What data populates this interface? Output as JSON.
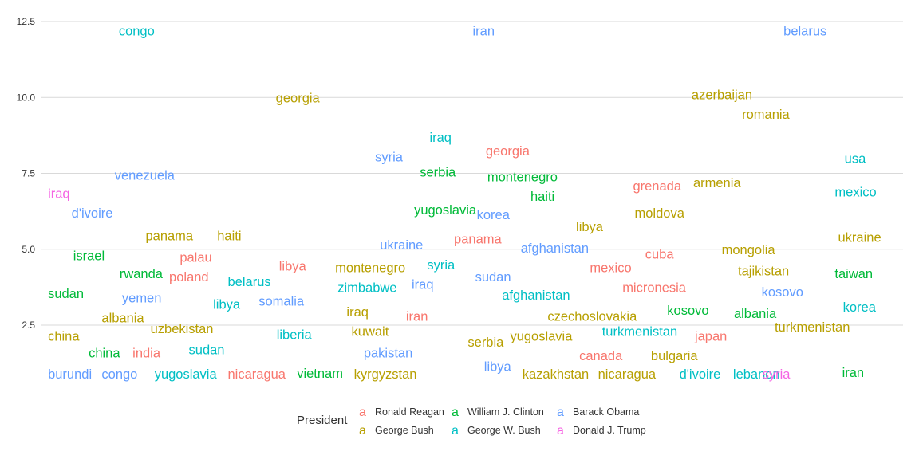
{
  "chart_data": {
    "type": "scatter",
    "title": "",
    "xlabel": "",
    "ylabel": "",
    "ylim": [
      0.4,
      13.0
    ],
    "y_ticks": [
      2.5,
      5.0,
      7.5,
      10.0,
      12.5
    ],
    "y_tick_labels": [
      "2.5",
      "5.0",
      "7.5",
      "10.0",
      "12.5"
    ],
    "x_axis_shown": false,
    "grid": "horizontal",
    "legend": {
      "title": "President",
      "placement": "bottom",
      "key_glyph": "a",
      "entries": [
        {
          "name": "Ronald Reagan",
          "color": "#F8766D"
        },
        {
          "name": "George Bush",
          "color": "#B79F00"
        },
        {
          "name": "William J. Clinton",
          "color": "#00BA38"
        },
        {
          "name": "George W. Bush",
          "color": "#00BFC4"
        },
        {
          "name": "Barack Obama",
          "color": "#619CFF"
        },
        {
          "name": "Donald J. Trump",
          "color": "#F564E3"
        }
      ]
    },
    "points": [
      {
        "label": "congo",
        "president": "George W. Bush",
        "x": 0.091,
        "y": 12.2
      },
      {
        "label": "iran",
        "president": "Barack Obama",
        "x": 0.526,
        "y": 12.2
      },
      {
        "label": "belarus",
        "president": "Barack Obama",
        "x": 0.908,
        "y": 12.2
      },
      {
        "label": "georgia",
        "president": "George Bush",
        "x": 0.284,
        "y": 10.0
      },
      {
        "label": "azerbaijan",
        "president": "George Bush",
        "x": 0.795,
        "y": 10.1
      },
      {
        "label": "romania",
        "president": "George Bush",
        "x": 0.857,
        "y": 9.45
      },
      {
        "label": "iraq",
        "president": "George W. Bush",
        "x": 0.473,
        "y": 8.7
      },
      {
        "label": "syria",
        "president": "Barack Obama",
        "x": 0.406,
        "y": 8.05
      },
      {
        "label": "georgia",
        "president": "Ronald Reagan",
        "x": 0.542,
        "y": 8.25
      },
      {
        "label": "usa",
        "president": "George W. Bush",
        "x": 0.983,
        "y": 8.0
      },
      {
        "label": "venezuela",
        "president": "Barack Obama",
        "x": 0.086,
        "y": 7.45
      },
      {
        "label": "serbia",
        "president": "William J. Clinton",
        "x": 0.461,
        "y": 7.55
      },
      {
        "label": "montenegro",
        "president": "William J. Clinton",
        "x": 0.544,
        "y": 7.4
      },
      {
        "label": "grenada",
        "president": "Ronald Reagan",
        "x": 0.723,
        "y": 7.1
      },
      {
        "label": "armenia",
        "president": "George Bush",
        "x": 0.797,
        "y": 7.2
      },
      {
        "label": "iraq",
        "president": "Donald J. Trump",
        "x": 0.004,
        "y": 6.85
      },
      {
        "label": "mexico",
        "president": "George W. Bush",
        "x": 0.971,
        "y": 6.9
      },
      {
        "label": "haiti",
        "president": "William J. Clinton",
        "x": 0.597,
        "y": 6.75
      },
      {
        "label": "d'ivoire",
        "president": "Barack Obama",
        "x": 0.033,
        "y": 6.2
      },
      {
        "label": "yugoslavia",
        "president": "William J. Clinton",
        "x": 0.454,
        "y": 6.3
      },
      {
        "label": "korea",
        "president": "Barack Obama",
        "x": 0.531,
        "y": 6.15
      },
      {
        "label": "moldova",
        "president": "George Bush",
        "x": 0.725,
        "y": 6.2
      },
      {
        "label": "libya",
        "president": "George George Bush",
        "x": 0.653,
        "y": 5.75
      },
      {
        "label": "panama",
        "president": "George Bush",
        "x": 0.124,
        "y": 5.45
      },
      {
        "label": "haiti",
        "president": "George Bush",
        "x": 0.212,
        "y": 5.45
      },
      {
        "label": "panama",
        "president": "Ronald Reagan",
        "x": 0.503,
        "y": 5.35
      },
      {
        "label": "ukraine",
        "president": "George Bush",
        "x": 0.975,
        "y": 5.4
      },
      {
        "label": "ukraine",
        "president": "Barack Obama",
        "x": 0.412,
        "y": 5.15
      },
      {
        "label": "afghanistan",
        "president": "Barack Obama",
        "x": 0.585,
        "y": 5.05
      },
      {
        "label": "mongolia",
        "president": "George Bush",
        "x": 0.832,
        "y": 5.0
      },
      {
        "label": "israel",
        "president": "William J. Clinton",
        "x": 0.035,
        "y": 4.8
      },
      {
        "label": "palau",
        "president": "Ronald Reagan",
        "x": 0.166,
        "y": 4.75
      },
      {
        "label": "cuba",
        "president": "Ronald Reagan",
        "x": 0.738,
        "y": 4.85
      },
      {
        "label": "libya",
        "president": "Ronald Reagan",
        "x": 0.288,
        "y": 4.45
      },
      {
        "label": "montenegro",
        "president": "George Bush",
        "x": 0.357,
        "y": 4.4
      },
      {
        "label": "syria",
        "president": "George W. Bush",
        "x": 0.47,
        "y": 4.5
      },
      {
        "label": "mexico",
        "president": "Ronald Reagan",
        "x": 0.67,
        "y": 4.4
      },
      {
        "label": "tajikistan",
        "president": "George Bush",
        "x": 0.852,
        "y": 4.3
      },
      {
        "label": "taiwan",
        "president": "William J. Clinton",
        "x": 0.971,
        "y": 4.2
      },
      {
        "label": "rwanda",
        "president": "William J. Clinton",
        "x": 0.092,
        "y": 4.2
      },
      {
        "label": "poland",
        "president": "Ronald Reagan",
        "x": 0.153,
        "y": 4.1
      },
      {
        "label": "belarus",
        "president": "George W. Bush",
        "x": 0.225,
        "y": 3.95
      },
      {
        "label": "sudan",
        "president": "Barack Obama",
        "x": 0.529,
        "y": 4.1
      },
      {
        "label": "zimbabwe",
        "president": "George W. Bush",
        "x": 0.36,
        "y": 3.75
      },
      {
        "label": "iraq",
        "president": "Barack Obama",
        "x": 0.451,
        "y": 3.85
      },
      {
        "label": "micronesia",
        "president": "Ronald Reagan",
        "x": 0.71,
        "y": 3.75
      },
      {
        "label": "sudan",
        "president": "William J. Clinton",
        "x": 0.004,
        "y": 3.55
      },
      {
        "label": "yemen",
        "president": "Barack Obama",
        "x": 0.095,
        "y": 3.4
      },
      {
        "label": "afghanistan",
        "president": "George W. Bush",
        "x": 0.562,
        "y": 3.5
      },
      {
        "label": "kosovo",
        "president": "Barack Obama",
        "x": 0.881,
        "y": 3.6
      },
      {
        "label": "libya",
        "president": "George W. Bush",
        "x": 0.207,
        "y": 3.2
      },
      {
        "label": "somalia",
        "president": "Barack Obama",
        "x": 0.263,
        "y": 3.3
      },
      {
        "label": "korea",
        "president": "George W. Bush",
        "x": 0.981,
        "y": 3.1
      },
      {
        "label": "iraq",
        "president": "George Bush",
        "x": 0.371,
        "y": 2.95
      },
      {
        "label": "kosovo",
        "president": "William J. Clinton",
        "x": 0.765,
        "y": 3.0
      },
      {
        "label": "albania",
        "president": "William J. Clinton",
        "x": 0.847,
        "y": 2.9
      },
      {
        "label": "albania",
        "president": "George Bush",
        "x": 0.07,
        "y": 2.75
      },
      {
        "label": "iran",
        "president": "Ronald Reagan",
        "x": 0.444,
        "y": 2.8
      },
      {
        "label": "czechoslovakia",
        "president": "George Bush",
        "x": 0.618,
        "y": 2.8
      },
      {
        "label": "uzbekistan",
        "president": "George Bush",
        "x": 0.13,
        "y": 2.4
      },
      {
        "label": "turkmenistan",
        "president": "George Bush",
        "x": 0.897,
        "y": 2.45
      },
      {
        "label": "kuwait",
        "president": "George Bush",
        "x": 0.377,
        "y": 2.3
      },
      {
        "label": "liberia",
        "president": "George W. Bush",
        "x": 0.285,
        "y": 2.2
      },
      {
        "label": "turkmenistan",
        "president": "George W. Bush",
        "x": 0.685,
        "y": 2.3
      },
      {
        "label": "china",
        "president": "George Bush",
        "x": 0.004,
        "y": 2.15
      },
      {
        "label": "yugoslavia",
        "president": "George Bush",
        "x": 0.572,
        "y": 2.15
      },
      {
        "label": "japan",
        "president": "Ronald Reagan",
        "x": 0.799,
        "y": 2.15
      },
      {
        "label": "serbia",
        "president": "George Bush",
        "x": 0.52,
        "y": 1.95
      },
      {
        "label": "sudan",
        "president": "George W. Bush",
        "x": 0.177,
        "y": 1.7
      },
      {
        "label": "china",
        "president": "William J. Clinton",
        "x": 0.054,
        "y": 1.6
      },
      {
        "label": "india",
        "president": "Ronald Reagan",
        "x": 0.108,
        "y": 1.6
      },
      {
        "label": "pakistan",
        "president": "Barack Obama",
        "x": 0.392,
        "y": 1.6
      },
      {
        "label": "canada",
        "president": "Ronald Reagan",
        "x": 0.657,
        "y": 1.5
      },
      {
        "label": "bulgaria",
        "president": "George Bush",
        "x": 0.745,
        "y": 1.5
      },
      {
        "label": "libya",
        "president": "Barack Obama",
        "x": 0.54,
        "y": 1.15
      },
      {
        "label": "burundi",
        "president": "Barack Obama",
        "x": 0.004,
        "y": 0.9
      },
      {
        "label": "congo",
        "president": "Barack Obama",
        "x": 0.07,
        "y": 0.9
      },
      {
        "label": "yugoslavia",
        "president": "George W. Bush",
        "x": 0.135,
        "y": 0.9
      },
      {
        "label": "nicaragua",
        "president": "Ronald Reagan",
        "x": 0.225,
        "y": 0.9
      },
      {
        "label": "vietnam",
        "president": "William J. Clinton",
        "x": 0.31,
        "y": 0.92
      },
      {
        "label": "kyrgyzstan",
        "president": "George Bush",
        "x": 0.38,
        "y": 0.9
      },
      {
        "label": "kazakhstan",
        "president": "George Bush",
        "x": 0.587,
        "y": 0.9
      },
      {
        "label": "nicaragua",
        "president": "George Bush",
        "x": 0.68,
        "y": 0.9
      },
      {
        "label": "d'ivoire",
        "president": "George W. Bush",
        "x": 0.78,
        "y": 0.9
      },
      {
        "label": "lebanon",
        "president": "George W. Bush",
        "x": 0.846,
        "y": 0.9
      },
      {
        "label": "syria",
        "president": "Donald J. Trump",
        "x": 0.882,
        "y": 0.9
      },
      {
        "label": "iran",
        "president": "William J. Clinton",
        "x": 0.98,
        "y": 0.95
      }
    ]
  }
}
